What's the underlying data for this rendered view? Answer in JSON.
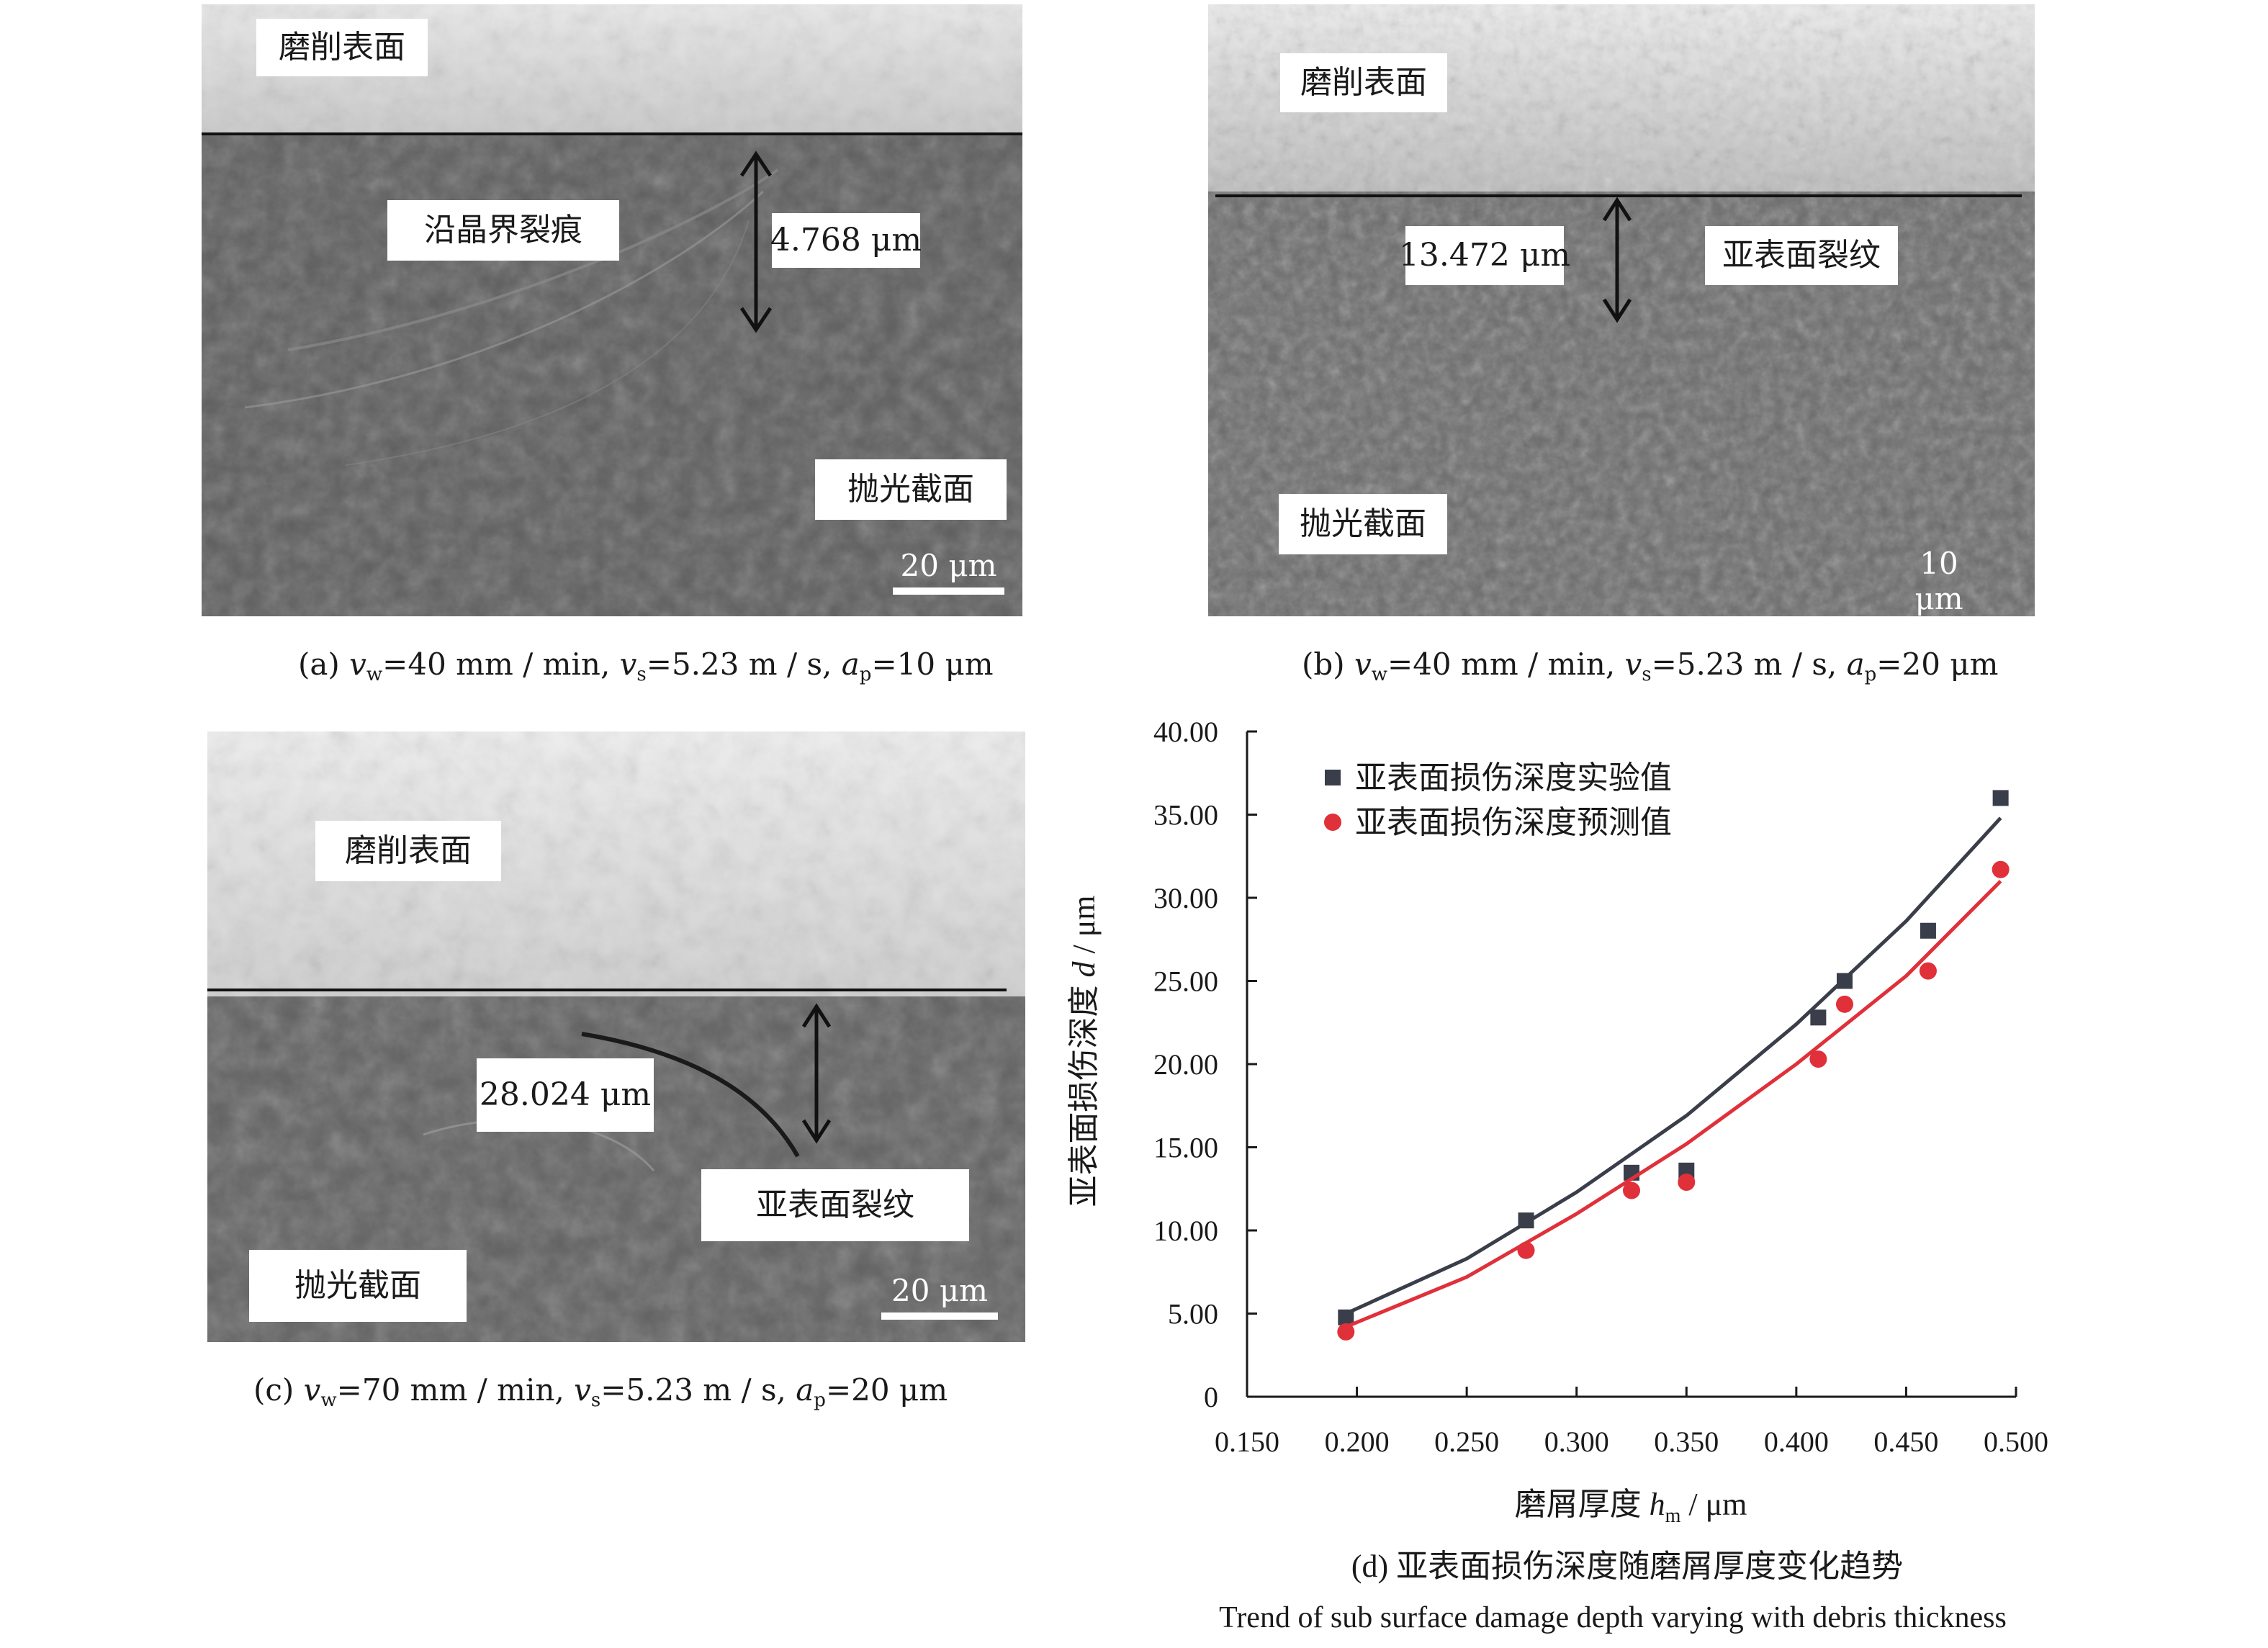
{
  "panels": {
    "a": {
      "labels": {
        "surface": "磨削表面",
        "crack": "沿晶界裂痕",
        "depth": "4.768 μm",
        "section": "抛光截面"
      },
      "scale": "20 μm",
      "caption": {
        "prefix": "(a) ",
        "v_w": "v",
        "sub_w": "w",
        "t1": "=40 mm / min, ",
        "v_s": "v",
        "sub_s": "s",
        "t2": "=5.23 m / s, ",
        "a_p": "a",
        "sub_p": "p",
        "t3": "=10 μm"
      }
    },
    "b": {
      "labels": {
        "surface": "磨削表面",
        "depth": "13.472 μm",
        "crack": "亚表面裂纹",
        "section": "抛光截面"
      },
      "scale": "10 μm",
      "caption": {
        "prefix": "(b) ",
        "v_w": "v",
        "sub_w": "w",
        "t1": "=40 mm / min, ",
        "v_s": "v",
        "sub_s": "s",
        "t2": "=5.23 m / s, ",
        "a_p": "a",
        "sub_p": "p",
        "t3": "=20 μm"
      }
    },
    "c": {
      "labels": {
        "surface": "磨削表面",
        "depth": "28.024 μm",
        "crack": "亚表面裂纹",
        "section": "抛光截面"
      },
      "scale": "20 μm",
      "caption": {
        "prefix": "(c) ",
        "v_w": "v",
        "sub_w": "w",
        "t1": "=70 mm / min, ",
        "v_s": "v",
        "sub_s": "s",
        "t2": "=5.23 m / s, ",
        "a_p": "a",
        "sub_p": "p",
        "t3": "=20 μm"
      }
    }
  },
  "chart_caption": {
    "line1": "(d) 亚表面损伤深度随磨屑厚度变化趋势",
    "line2": "Trend of sub surface damage depth varying with debris thickness"
  },
  "chart_data": {
    "type": "scatter",
    "xlabel": {
      "text": "磨屑厚度 ",
      "var": "h",
      "sub": "m",
      "unit": " / μm"
    },
    "ylabel": {
      "text": "亚表面损伤深度 ",
      "var": "d",
      "unit": " / μm"
    },
    "xlim": [
      0.15,
      0.5
    ],
    "ylim": [
      0,
      40
    ],
    "x_ticks": [
      "0.150",
      "0.200",
      "0.250",
      "0.300",
      "0.350",
      "0.400",
      "0.450",
      "0.500"
    ],
    "y_ticks": [
      "0",
      "5.00",
      "10.00",
      "15.00",
      "20.00",
      "25.00",
      "30.00",
      "35.00",
      "40.00"
    ],
    "legend_position": "top-left",
    "series": [
      {
        "name": "亚表面损伤深度实验值",
        "marker": "square",
        "color": "#3a3d4a",
        "x": [
          0.195,
          0.277,
          0.325,
          0.35,
          0.41,
          0.422,
          0.46,
          0.493
        ],
        "y": [
          4.77,
          10.6,
          13.47,
          13.6,
          22.8,
          25.0,
          28.02,
          36.0
        ],
        "fit": [
          [
            0.195,
            5.0
          ],
          [
            0.25,
            8.3
          ],
          [
            0.3,
            12.3
          ],
          [
            0.35,
            16.9
          ],
          [
            0.4,
            22.4
          ],
          [
            0.45,
            28.6
          ],
          [
            0.493,
            34.8
          ]
        ]
      },
      {
        "name": "亚表面损伤深度预测值",
        "marker": "circle",
        "color": "#e0303a",
        "x": [
          0.195,
          0.277,
          0.325,
          0.35,
          0.41,
          0.422,
          0.46,
          0.493
        ],
        "y": [
          3.9,
          8.8,
          12.4,
          12.9,
          20.3,
          23.6,
          25.6,
          31.7
        ],
        "fit": [
          [
            0.195,
            4.2
          ],
          [
            0.25,
            7.2
          ],
          [
            0.3,
            11.0
          ],
          [
            0.35,
            15.2
          ],
          [
            0.4,
            20.0
          ],
          [
            0.45,
            25.3
          ],
          [
            0.493,
            31.0
          ]
        ]
      }
    ]
  }
}
